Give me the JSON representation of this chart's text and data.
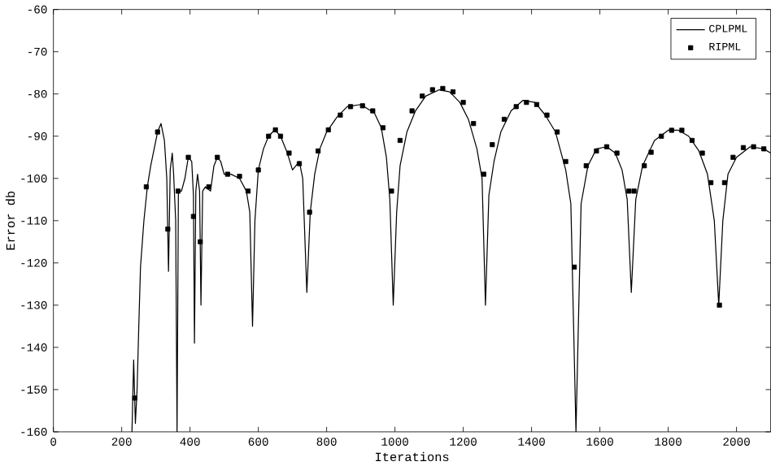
{
  "chart_data": {
    "type": "line",
    "xlabel": "Iterations",
    "ylabel": "Error db",
    "xlim": [
      0,
      2100
    ],
    "ylim": [
      -160,
      -60
    ],
    "xticks": [
      0,
      200,
      400,
      600,
      800,
      1000,
      1200,
      1400,
      1600,
      1800,
      2000
    ],
    "yticks": [
      -160,
      -150,
      -140,
      -130,
      -120,
      -110,
      -100,
      -90,
      -80,
      -70,
      -60
    ],
    "legend": "top right",
    "grid": false,
    "series": [
      {
        "name": "CPLPML",
        "color": "#000000",
        "marker": "none",
        "line_style": "solid",
        "x": [
          230,
          235,
          240,
          245,
          250,
          255,
          265,
          275,
          285,
          295,
          305,
          315,
          325,
          332,
          337,
          342,
          348,
          352,
          358,
          362,
          366,
          375,
          385,
          395,
          405,
          410,
          413,
          417,
          422,
          428,
          432,
          437,
          445,
          460,
          470,
          480,
          490,
          500,
          520,
          545,
          565,
          575,
          583,
          590,
          600,
          615,
          630,
          648,
          665,
          685,
          700,
          710,
          720,
          730,
          742,
          752,
          765,
          780,
          800,
          830,
          860,
          900,
          940,
          960,
          975,
          985,
          995,
          1005,
          1015,
          1035,
          1060,
          1090,
          1130,
          1160,
          1190,
          1215,
          1240,
          1255,
          1265,
          1275,
          1290,
          1310,
          1340,
          1375,
          1410,
          1440,
          1470,
          1500,
          1515,
          1530,
          1545,
          1565,
          1590,
          1620,
          1645,
          1665,
          1680,
          1692,
          1705,
          1725,
          1760,
          1800,
          1830,
          1860,
          1890,
          1915,
          1935,
          1948,
          1960,
          1975,
          2000,
          2040,
          2080,
          2100
        ],
        "values": [
          -160,
          -143,
          -158,
          -150,
          -135,
          -121,
          -110,
          -102,
          -97,
          -93,
          -89,
          -87,
          -91,
          -100,
          -122,
          -98,
          -94,
          -99,
          -110,
          -160,
          -103,
          -103,
          -100,
          -95,
          -96,
          -104,
          -139,
          -103,
          -99,
          -103,
          -130,
          -103,
          -102,
          -103,
          -97,
          -95,
          -96,
          -99,
          -99,
          -100,
          -103,
          -108,
          -135,
          -110,
          -98,
          -93,
          -90,
          -88.5,
          -90,
          -94,
          -98,
          -97,
          -96,
          -100,
          -127,
          -108,
          -99,
          -93,
          -89,
          -85.5,
          -83,
          -82.5,
          -84.5,
          -88,
          -95,
          -105,
          -130,
          -108,
          -97,
          -89,
          -84,
          -80.5,
          -79,
          -79.5,
          -82,
          -86,
          -93,
          -100,
          -130,
          -104,
          -96,
          -89,
          -84,
          -81.5,
          -82,
          -85,
          -89,
          -98,
          -106,
          -160,
          -106,
          -97,
          -93,
          -92.5,
          -94,
          -98,
          -105,
          -127,
          -105,
          -97,
          -91,
          -88.6,
          -88.6,
          -90,
          -93.5,
          -99,
          -110,
          -130,
          -110,
          -99,
          -95,
          -92.5,
          -93,
          -94
        ]
      },
      {
        "name": "RIPML",
        "type": "scatter",
        "color": "#000000",
        "marker": "square",
        "x": [
          238,
          272,
          305,
          335,
          365,
          395,
          410,
          430,
          455,
          480,
          510,
          545,
          570,
          600,
          630,
          650,
          665,
          690,
          720,
          750,
          775,
          805,
          840,
          870,
          905,
          935,
          965,
          990,
          1015,
          1050,
          1080,
          1110,
          1140,
          1170,
          1200,
          1230,
          1260,
          1285,
          1320,
          1355,
          1385,
          1415,
          1445,
          1475,
          1500,
          1525,
          1560,
          1590,
          1620,
          1650,
          1685,
          1700,
          1730,
          1750,
          1780,
          1810,
          1840,
          1870,
          1900,
          1925,
          1950,
          1965,
          1990,
          2020,
          2050,
          2080
        ],
        "values": [
          -152,
          -102,
          -89,
          -112,
          -103,
          -95,
          -109,
          -115,
          -102,
          -95,
          -99,
          -99.5,
          -103,
          -98,
          -90,
          -88.5,
          -90,
          -94,
          -96.5,
          -108,
          -93.5,
          -88.5,
          -85,
          -83,
          -82.8,
          -84,
          -88,
          -103,
          -91,
          -84,
          -80.5,
          -79,
          -78.7,
          -79.5,
          -82,
          -87,
          -99,
          -92,
          -86,
          -83,
          -82,
          -82.5,
          -85,
          -89,
          -96,
          -121,
          -97,
          -93.5,
          -92.5,
          -94,
          -103,
          -103,
          -97,
          -93.8,
          -90,
          -88.6,
          -88.6,
          -91,
          -94,
          -101,
          -130,
          -101,
          -95,
          -92.7,
          -92.5,
          -93
        ]
      }
    ]
  }
}
